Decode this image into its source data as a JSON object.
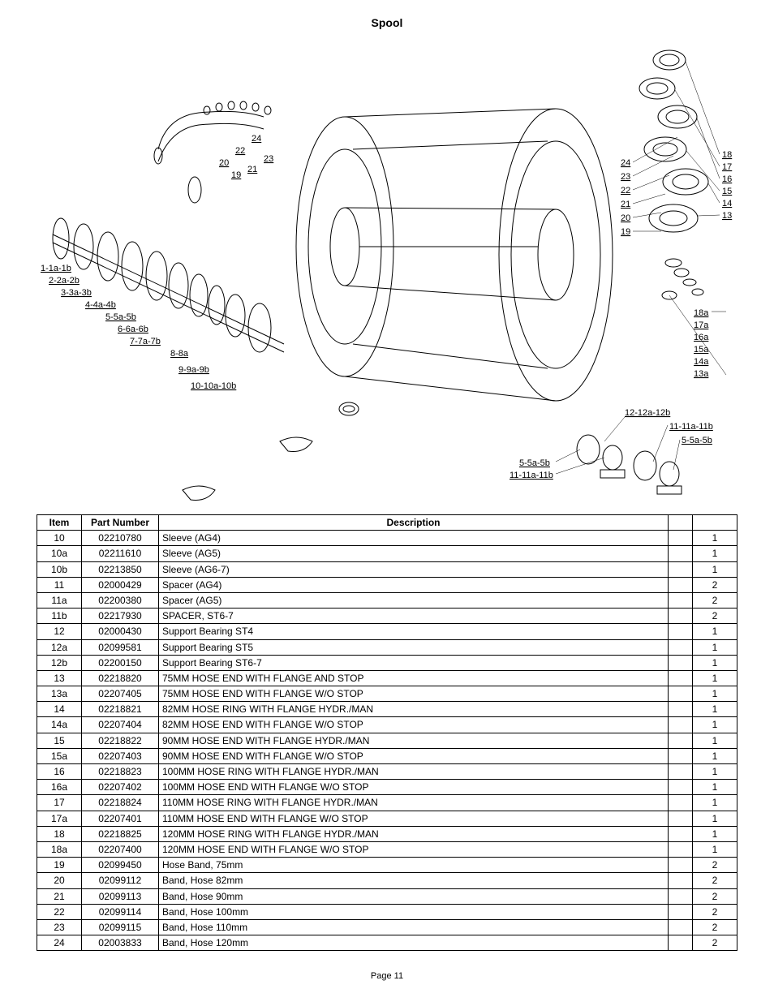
{
  "title": "Spool",
  "page_label": "Page 11",
  "diagram": {
    "left_callouts": [
      "1-1a-1b",
      "2-2a-2b",
      "3-3a-3b",
      "4-4a-4b",
      "5-5a-5b",
      "6-6a-6b",
      "7-7a-7b",
      "8-8a",
      "9-9a-9b",
      "10-10a-10b"
    ],
    "top_small_callouts": [
      "19",
      "20",
      "21",
      "22",
      "23",
      "24"
    ],
    "right_upper_callouts": [
      "13",
      "14",
      "15",
      "16",
      "17",
      "18"
    ],
    "right_mid_callouts": [
      "13a",
      "14a",
      "15a",
      "16a",
      "17a",
      "18a"
    ],
    "right_center_callouts": [
      "19",
      "20",
      "21",
      "22",
      "23",
      "24"
    ],
    "bottom_callouts": [
      "5-5a-5b",
      "11-11a-11b",
      "12-12a-12b",
      "5-5a-5b",
      "11-11a-11b"
    ]
  },
  "table": {
    "columns": [
      "Item",
      "Part Number",
      "Description",
      "",
      ""
    ],
    "rows": [
      [
        "10",
        "02210780",
        "Sleeve     (AG4)",
        "",
        "1"
      ],
      [
        "10a",
        "02211610",
        "Sleeve     (AG5)",
        "",
        "1"
      ],
      [
        "10b",
        "02213850",
        "Sleeve     (AG6-7)",
        "",
        "1"
      ],
      [
        "11",
        "02000429",
        "Spacer   (AG4)",
        "",
        "2"
      ],
      [
        "11a",
        "02200380",
        "Spacer  (AG5)",
        "",
        "2"
      ],
      [
        "11b",
        "02217930",
        "SPACER,  ST6-7",
        "",
        "2"
      ],
      [
        "12",
        "02000430",
        "Support Bearing    ST4",
        "",
        "1"
      ],
      [
        "12a",
        "02099581",
        "Support Bearing    ST5",
        "",
        "1"
      ],
      [
        "12b",
        "02200150",
        "Support Bearing   ST6-7",
        "",
        "1"
      ],
      [
        "13",
        "02218820",
        "75MM HOSE END WITH FLANGE AND STOP",
        "",
        "1"
      ],
      [
        "13a",
        "02207405",
        "75MM HOSE END WITH FLANGE W/O STOP",
        "",
        "1"
      ],
      [
        "14",
        "02218821",
        "82MM HOSE RING WITH FLANGE HYDR./MAN",
        "",
        "1"
      ],
      [
        "14a",
        "02207404",
        "82MM HOSE END WITH FLANGE W/O STOP",
        "",
        "1"
      ],
      [
        "15",
        "02218822",
        "90MM HOSE END  WITH FLANGE HYDR./MAN",
        "",
        "1"
      ],
      [
        "15a",
        "02207403",
        "90MM HOSE END  WITH FLANGE W/O STOP",
        "",
        "1"
      ],
      [
        "16",
        "02218823",
        "100MM HOSE RING WITH FLANGE HYDR./MAN",
        "",
        "1"
      ],
      [
        "16a",
        "02207402",
        "100MM HOSE END  WITH FLANGE W/O STOP",
        "",
        "1"
      ],
      [
        "17",
        "02218824",
        "110MM HOSE RING WITH FLANGE HYDR./MAN",
        "",
        "1"
      ],
      [
        "17a",
        "02207401",
        "110MM HOSE END  WITH FLANGE W/O STOP",
        "",
        "1"
      ],
      [
        "18",
        "02218825",
        "120MM HOSE RING WITH FLANGE HYDR./MAN",
        "",
        "1"
      ],
      [
        "18a",
        "02207400",
        "120MM HOSE END  WITH FLANGE W/O STOP",
        "",
        "1"
      ],
      [
        "19",
        "02099450",
        "Hose Band, 75mm",
        "",
        "2"
      ],
      [
        "20",
        "02099112",
        "Band, Hose 82mm",
        "",
        "2"
      ],
      [
        "21",
        "02099113",
        "Band, Hose 90mm",
        "",
        "2"
      ],
      [
        "22",
        "02099114",
        "Band, Hose 100mm",
        "",
        "2"
      ],
      [
        "23",
        "02099115",
        "Band, Hose 110mm",
        "",
        "2"
      ],
      [
        "24",
        "02003833",
        "Band, Hose 120mm",
        "",
        "2"
      ]
    ]
  },
  "styling": {
    "background_color": "#ffffff",
    "text_color": "#000000",
    "border_color": "#000000",
    "font_family": "Arial",
    "table_font_size": 12,
    "title_font_size": 14,
    "callout_font_size": 11,
    "line_stroke": "#000000",
    "line_width": 1
  }
}
